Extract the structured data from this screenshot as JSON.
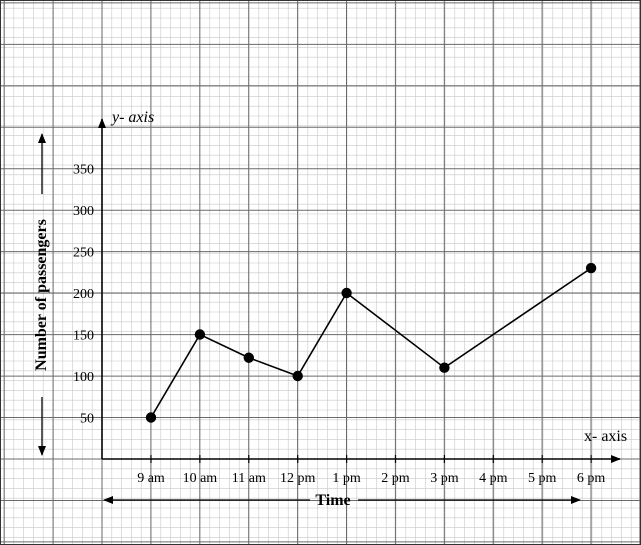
{
  "chart_data": {
    "type": "line",
    "categories": [
      "9 am",
      "10 am",
      "11 am",
      "12 pm",
      "1 pm",
      "2 pm",
      "3 pm",
      "4 pm",
      "5 pm",
      "6 pm"
    ],
    "y_ticks": [
      50,
      100,
      150,
      200,
      250,
      300,
      350
    ],
    "series": [
      {
        "points": [
          {
            "x": "9 am",
            "y": 50
          },
          {
            "x": "10 am",
            "y": 150
          },
          {
            "x": "11 am",
            "y": 122
          },
          {
            "x": "12 pm",
            "y": 100
          },
          {
            "x": "1 pm",
            "y": 200
          },
          {
            "x": "3 pm",
            "y": 110
          },
          {
            "x": "6 pm",
            "y": 230
          }
        ]
      }
    ],
    "xlabel": "Time",
    "ylabel": "Number of passengers",
    "x_axis_name": "x- axis",
    "y_axis_name": "y- axis",
    "ylim": [
      0,
      400
    ],
    "grid": true,
    "line_color": "#000000",
    "marker_color": "#000000"
  }
}
